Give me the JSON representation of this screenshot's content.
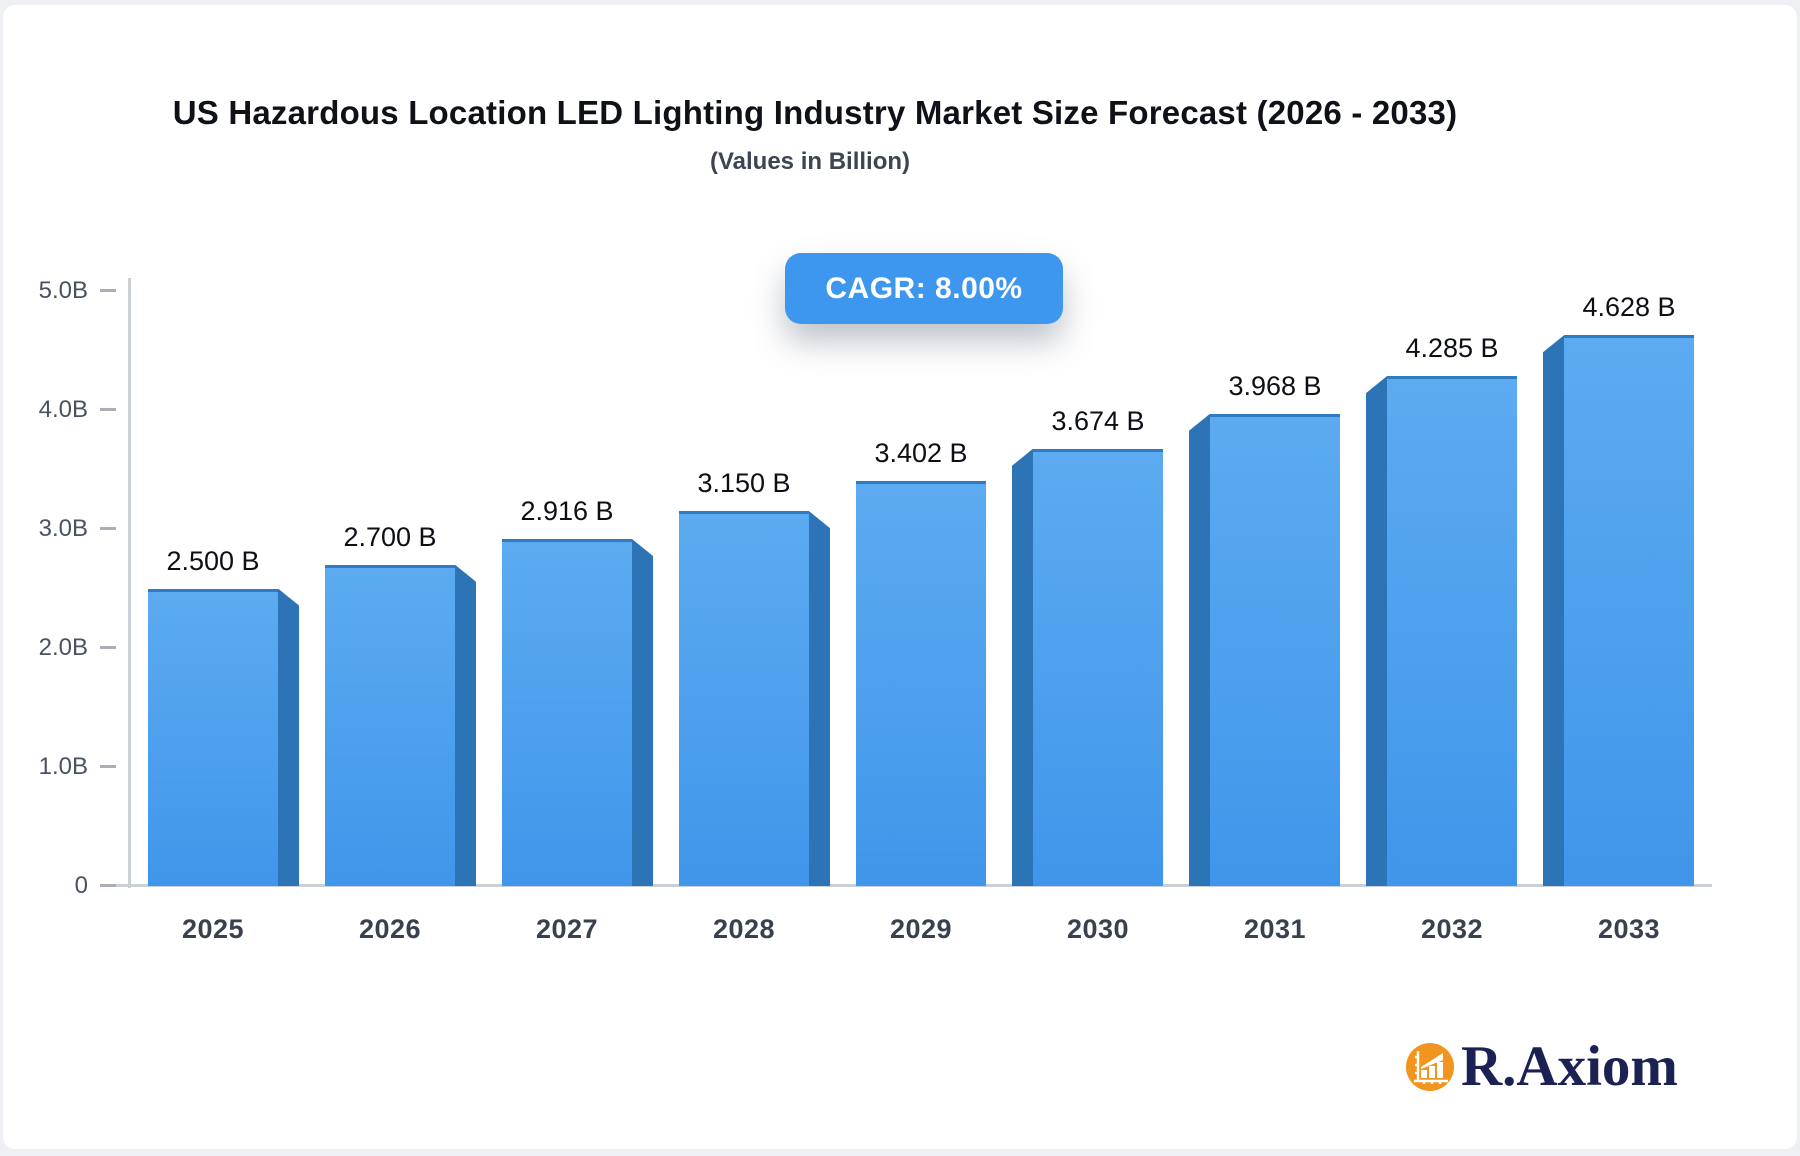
{
  "page": {
    "title": "US Hazardous Location LED Lighting Industry Market Size Forecast (2026 - 2033)",
    "subtitle": "(Values in Billion)",
    "cagr_label": "CAGR: 8.00%"
  },
  "branding": {
    "logo_text": "R.Axiom",
    "logo_icon": "bar-chart-icon",
    "logo_circle_color": "#F2951F",
    "logo_text_color": "#1B2153"
  },
  "colors": {
    "badge_bg": "#3D97EE",
    "bar_face_top": "#5CABF0",
    "bar_face_bottom": "#3F96EA",
    "bar_top_edge": "#2F7CC3",
    "bar_side": "#2D74B6",
    "axis_line": "#CBCFD6",
    "tick_dash": "#A9AEB8"
  },
  "chart_data": {
    "type": "bar",
    "title": "US Hazardous Location LED Lighting Industry Market Size Forecast (2026 - 2033)",
    "subtitle": "(Values in Billion)",
    "cagr": "8.00%",
    "unit": "Billion USD",
    "categories": [
      "2025",
      "2026",
      "2027",
      "2028",
      "2029",
      "2030",
      "2031",
      "2032",
      "2033"
    ],
    "values": [
      2.5,
      2.7,
      2.916,
      3.15,
      3.402,
      3.674,
      3.968,
      4.285,
      4.628
    ],
    "value_labels": [
      "2.500 B",
      "2.700 B",
      "2.916 B",
      "3.150 B",
      "3.402 B",
      "3.674 B",
      "3.968 B",
      "4.285 B",
      "4.628 B"
    ],
    "xlabel": "",
    "ylabel": "",
    "ylim": [
      0,
      5
    ],
    "yticks": [
      0,
      1,
      2,
      3,
      4,
      5
    ],
    "ytick_labels": [
      "0",
      "1.0B",
      "2.0B",
      "3.0B",
      "4.0B",
      "5.0B"
    ],
    "grid": false,
    "legend": false
  }
}
